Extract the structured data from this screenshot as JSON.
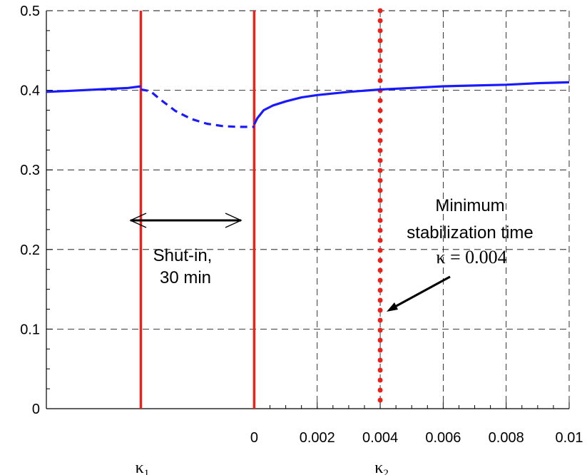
{
  "chart_data": {
    "type": "line",
    "title": "",
    "xlabel": "",
    "ylabel": "",
    "xlim": [
      -0.0066,
      0.01
    ],
    "ylim": [
      0,
      0.5
    ],
    "grid": true,
    "x_ticks": [
      0,
      0.002,
      0.004,
      0.006,
      0.008,
      0.01
    ],
    "x_tick_labels": [
      "0",
      "0.002",
      "0.004",
      "0.006",
      "0.008",
      "0.01"
    ],
    "y_ticks": [
      0,
      0.1,
      0.2,
      0.3,
      0.4,
      0.5
    ],
    "y_tick_labels": [
      "0",
      "0.1",
      "0.2",
      "0.3",
      "0.4",
      "0.5"
    ],
    "series": [
      {
        "style": "solid",
        "color": "#1a1aff",
        "x": [
          -0.0066,
          -0.006,
          -0.005,
          -0.004,
          -0.0036
        ],
        "y": [
          0.398,
          0.399,
          0.401,
          0.403,
          0.405
        ]
      },
      {
        "style": "dashed",
        "color": "#1a1aff",
        "x": [
          -0.0036,
          -0.0033,
          -0.003,
          -0.0025,
          -0.002,
          -0.0015,
          -0.001,
          -0.0005,
          0
        ],
        "y": [
          0.401,
          0.399,
          0.389,
          0.374,
          0.364,
          0.358,
          0.355,
          0.354,
          0.354
        ]
      },
      {
        "style": "solid",
        "color": "#1a1aff",
        "x": [
          0,
          0.0001,
          0.0003,
          0.0006,
          0.001,
          0.0015,
          0.002,
          0.003,
          0.004,
          0.005,
          0.006,
          0.007,
          0.008,
          0.009,
          0.01
        ],
        "y": [
          0.357,
          0.365,
          0.375,
          0.381,
          0.386,
          0.391,
          0.394,
          0.398,
          0.401,
          0.403,
          0.405,
          0.406,
          0.407,
          0.409,
          0.41
        ]
      }
    ],
    "vertical_lines": [
      {
        "x": -0.0036,
        "style": "solid",
        "color": "#e8231b",
        "label": "κ",
        "subscript": "1"
      },
      {
        "x": 0,
        "style": "solid",
        "color": "#e8231b"
      },
      {
        "x": 0.004,
        "style": "dotted",
        "color": "#e8231b",
        "label": "κ",
        "subscript": "2"
      }
    ],
    "annotations": {
      "shutin_line1": "Shut-in,",
      "shutin_line2": "30 min",
      "stab_line1": "Minimum",
      "stab_line2": "stabilization time",
      "stab_line3": "κ = 0.004"
    }
  }
}
